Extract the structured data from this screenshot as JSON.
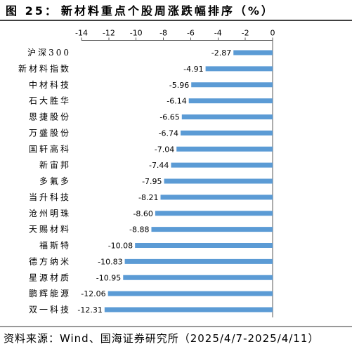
{
  "figure": {
    "number": "图 25：",
    "source": "资料来源：Wind、国海证券研究所（2025/4/7-2025/4/11）"
  },
  "chart_data": {
    "type": "bar",
    "orientation": "horizontal",
    "title": "新材料重点个股周涨跌幅排序（%）",
    "categories": [
      "沪深300",
      "新材料指数",
      "中材科技",
      "石大胜华",
      "恩捷股份",
      "万盛股份",
      "国轩高科",
      "新宙邦",
      "多氟多",
      "当升科技",
      "沧州明珠",
      "天赐材料",
      "福斯特",
      "德方纳米",
      "星源材质",
      "鹏辉能源",
      "双一科技"
    ],
    "values": [
      -2.87,
      -4.91,
      -5.96,
      -6.14,
      -6.65,
      -6.74,
      -7.04,
      -7.44,
      -7.95,
      -8.21,
      -8.6,
      -8.88,
      -10.08,
      -10.83,
      -10.95,
      -12.06,
      -12.31
    ],
    "xlim": [
      -14,
      0
    ],
    "xticks": [
      -14,
      -12,
      -10,
      -8,
      -6,
      -4,
      -2,
      0
    ],
    "x_axis_position": "top",
    "data_labels": true,
    "grid": false,
    "bar_color": "#5B9BD5"
  }
}
